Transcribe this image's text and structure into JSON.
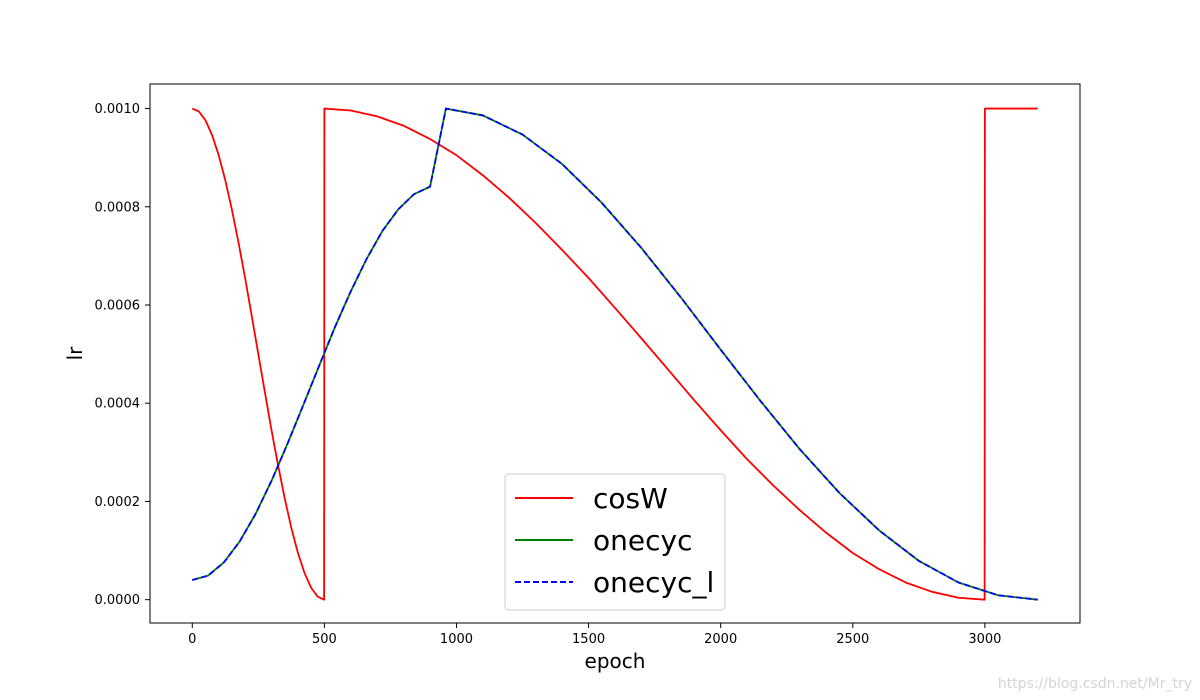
{
  "chart_data": {
    "type": "line",
    "title": "",
    "xlabel": "epoch",
    "ylabel": "lr",
    "xlim": [
      -160,
      3360
    ],
    "ylim": [
      -4.75e-05,
      0.00105
    ],
    "xticks": [
      0,
      500,
      1000,
      1500,
      2000,
      2500,
      3000
    ],
    "xtick_labels": [
      "0",
      "500",
      "1000",
      "1500",
      "2000",
      "2500",
      "3000"
    ],
    "yticks": [
      0.0,
      0.0002,
      0.0004,
      0.0006,
      0.0008,
      0.001
    ],
    "ytick_labels": [
      "0.0000",
      "0.0002",
      "0.0004",
      "0.0006",
      "0.0008",
      "0.0010"
    ],
    "grid": false,
    "legend_position": "lower-center",
    "series": [
      {
        "name": "cosW",
        "color": "#ff0000",
        "style": "solid",
        "x": [
          0,
          25,
          50,
          75,
          100,
          125,
          150,
          175,
          200,
          225,
          250,
          275,
          300,
          325,
          350,
          375,
          400,
          425,
          450,
          475,
          499,
          500,
          600,
          700,
          800,
          900,
          1000,
          1100,
          1200,
          1300,
          1400,
          1500,
          1600,
          1700,
          1800,
          1900,
          2000,
          2100,
          2200,
          2300,
          2400,
          2500,
          2600,
          2700,
          2800,
          2900,
          2999,
          3000,
          3200
        ],
        "y": [
          0.001,
          0.000994,
          0.000976,
          0.000946,
          0.000905,
          0.000854,
          0.000794,
          0.000727,
          0.000655,
          0.000578,
          0.0005,
          0.000422,
          0.000345,
          0.000273,
          0.000206,
          0.000146,
          9.5e-05,
          5.4e-05,
          2.4e-05,
          6e-06,
          0.0,
          0.001,
          0.000996,
          0.000984,
          0.000965,
          0.000938,
          0.000905,
          0.000864,
          0.000818,
          0.000767,
          0.000712,
          0.000655,
          0.000594,
          0.000532,
          0.000469,
          0.000406,
          0.000345,
          0.000286,
          0.000232,
          0.000182,
          0.000136,
          9.5e-05,
          6.2e-05,
          3.5e-05,
          1.6e-05,
          4e-06,
          0.0,
          0.001,
          0.001
        ]
      },
      {
        "name": "onecyc",
        "color": "#008000",
        "style": "solid",
        "x": [
          0,
          60,
          120,
          180,
          240,
          300,
          360,
          420,
          480,
          540,
          600,
          660,
          720,
          780,
          840,
          900,
          960,
          1100,
          1250,
          1400,
          1550,
          1700,
          1850,
          2000,
          2150,
          2300,
          2450,
          2600,
          2750,
          2900,
          3050,
          3200
        ],
        "y": [
          4e-05,
          4.9e-05,
          7.6e-05,
          0.000119,
          0.000175,
          0.000242,
          0.000317,
          0.000396,
          0.000476,
          0.000555,
          0.000628,
          0.000694,
          0.000751,
          0.000795,
          0.000826,
          0.000841,
          0.001,
          0.000986,
          0.000947,
          0.000887,
          0.000808,
          0.000716,
          0.000615,
          0.000509,
          0.000405,
          0.000306,
          0.000217,
          0.000141,
          7.9e-05,
          3.5e-05,
          9e-06,
          0.0
        ]
      },
      {
        "name": "onecyc_l",
        "color": "#0000ff",
        "style": "dashed",
        "x": [
          0,
          60,
          120,
          180,
          240,
          300,
          360,
          420,
          480,
          540,
          600,
          660,
          720,
          780,
          840,
          900,
          960,
          1100,
          1250,
          1400,
          1550,
          1700,
          1850,
          2000,
          2150,
          2300,
          2450,
          2600,
          2750,
          2900,
          3050,
          3200
        ],
        "y": [
          4e-05,
          4.9e-05,
          7.6e-05,
          0.000119,
          0.000175,
          0.000242,
          0.000317,
          0.000396,
          0.000476,
          0.000555,
          0.000628,
          0.000694,
          0.000751,
          0.000795,
          0.000826,
          0.000841,
          0.001,
          0.000986,
          0.000947,
          0.000887,
          0.000808,
          0.000716,
          0.000615,
          0.000509,
          0.000405,
          0.000306,
          0.000217,
          0.000141,
          7.9e-05,
          3.5e-05,
          9e-06,
          0.0
        ]
      }
    ]
  },
  "watermark": "https://blog.csdn.net/Mr_try"
}
